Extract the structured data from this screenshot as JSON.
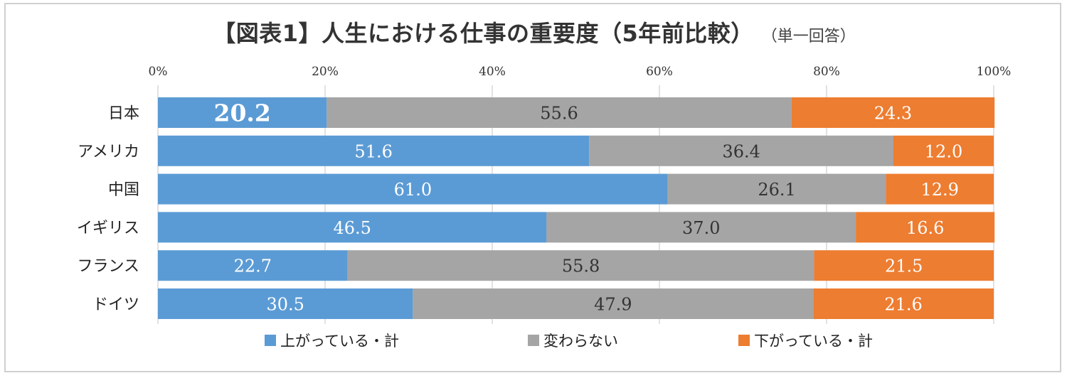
{
  "title": "【図表1】人生における仕事の重要度（5年前比較）",
  "subtitle": "（単一回答）",
  "chart_data": {
    "type": "bar",
    "orientation": "horizontal",
    "stacked": "percent",
    "categories": [
      "日本",
      "アメリカ",
      "中国",
      "イギリス",
      "フランス",
      "ドイツ"
    ],
    "series": [
      {
        "name": "上がっている・計",
        "color": "#5b9bd5",
        "label_color": "#ffffff",
        "values": [
          20.2,
          51.6,
          61.0,
          46.5,
          22.7,
          30.5
        ]
      },
      {
        "name": "変わらない",
        "color": "#a5a5a5",
        "label_color": "#333333",
        "values": [
          55.6,
          36.4,
          26.1,
          37.0,
          55.8,
          47.9
        ]
      },
      {
        "name": "下がっている・計",
        "color": "#ed7d31",
        "label_color": "#ffffff",
        "values": [
          24.3,
          12.0,
          12.9,
          16.6,
          21.5,
          21.6
        ]
      }
    ],
    "x_ticks": [
      "0%",
      "20%",
      "40%",
      "60%",
      "80%",
      "100%"
    ],
    "xlim": [
      0,
      100
    ],
    "x_axis_position": "top",
    "grid": true,
    "legend_position": "bottom",
    "highlighted_label": {
      "series": 0,
      "category": 0
    }
  }
}
